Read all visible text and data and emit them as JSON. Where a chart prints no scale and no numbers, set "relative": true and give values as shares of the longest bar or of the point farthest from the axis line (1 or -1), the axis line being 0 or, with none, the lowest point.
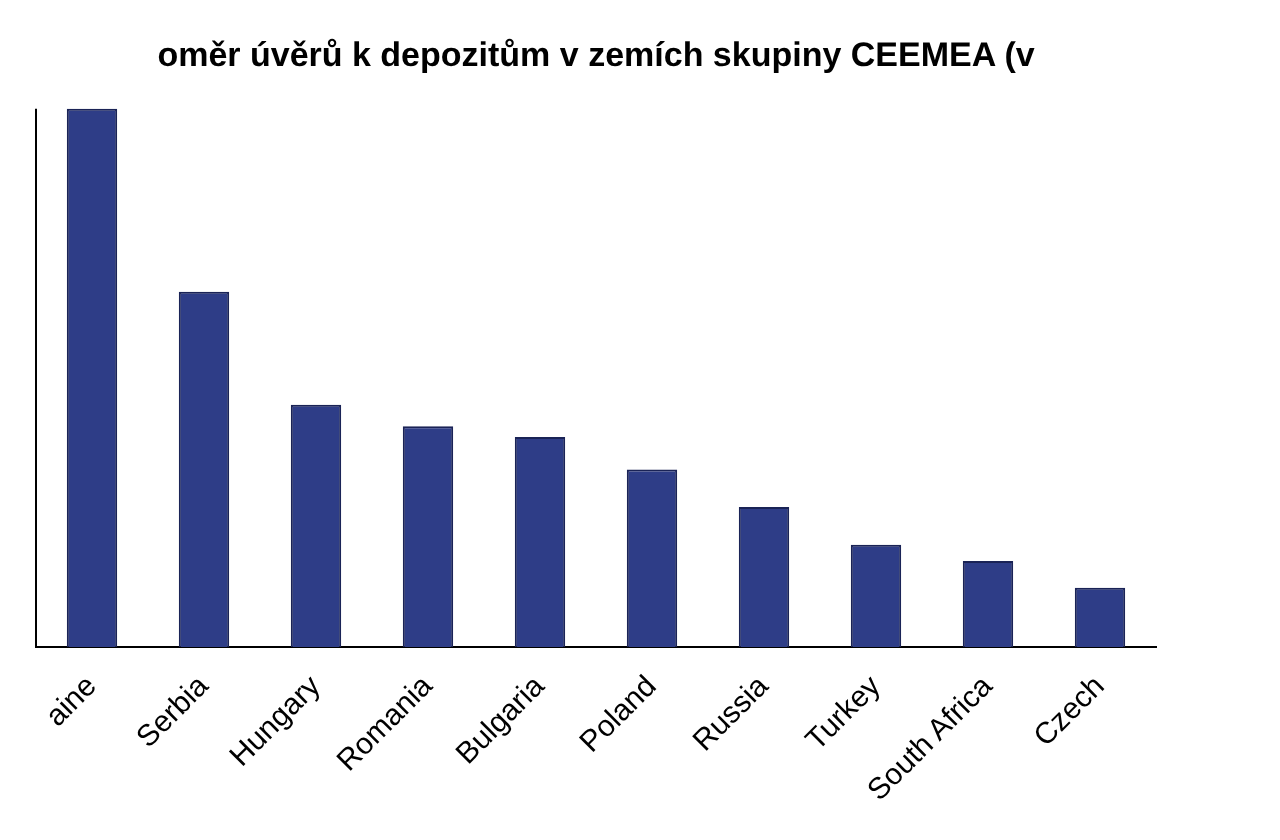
{
  "chart_data": {
    "type": "bar",
    "title": "oměr úvěrů k depozitům v zemích skupiny CEEMEA (v",
    "categories": [
      "aine",
      "Serbia",
      "Hungary",
      "Romania",
      "Bulgaria",
      "Poland",
      "Russia",
      "Turkey",
      "South Africa",
      "Czech"
    ],
    "values": [
      1,
      0.66,
      0.45,
      0.41,
      0.39,
      0.33,
      0.26,
      0.19,
      0.16,
      0.11
    ],
    "color": "#2e3d87",
    "relative": true,
    "grid": false,
    "legend": false
  }
}
